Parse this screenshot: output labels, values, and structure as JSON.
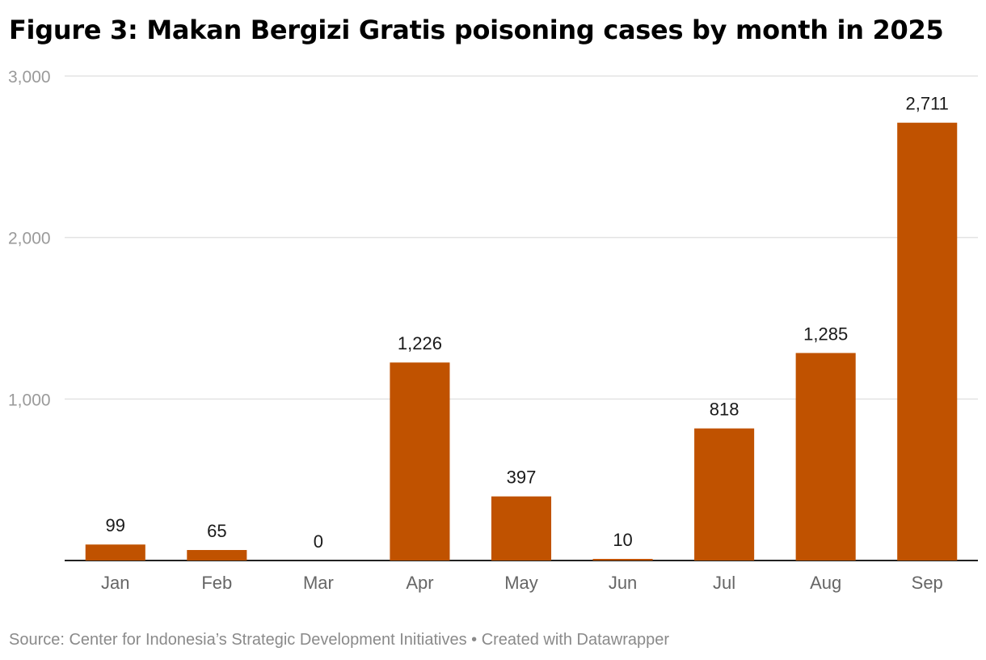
{
  "title": "Figure 3: Makan Bergizi Gratis poisoning cases by month in 2025",
  "source": "Source: Center for Indonesia’s Strategic Development Initiatives • Created with Datawrapper",
  "colors": {
    "bar": "#c05200"
  },
  "chart_data": {
    "type": "bar",
    "title": "Figure 3: Makan Bergizi Gratis poisoning cases by month in 2025",
    "xlabel": "",
    "ylabel": "",
    "categories": [
      "Jan",
      "Feb",
      "Mar",
      "Apr",
      "May",
      "Jun",
      "Jul",
      "Aug",
      "Sep"
    ],
    "values": [
      99,
      65,
      0,
      1226,
      397,
      10,
      818,
      1285,
      2711
    ],
    "data_labels": [
      "99",
      "65",
      "0",
      "1,226",
      "397",
      "10",
      "818",
      "1,285",
      "2,711"
    ],
    "ylim": [
      0,
      3000
    ],
    "yticks": [
      1000,
      2000,
      3000
    ],
    "ytick_labels": [
      "1,000",
      "2,000",
      "3,000"
    ],
    "grid": true,
    "legend": "none"
  }
}
